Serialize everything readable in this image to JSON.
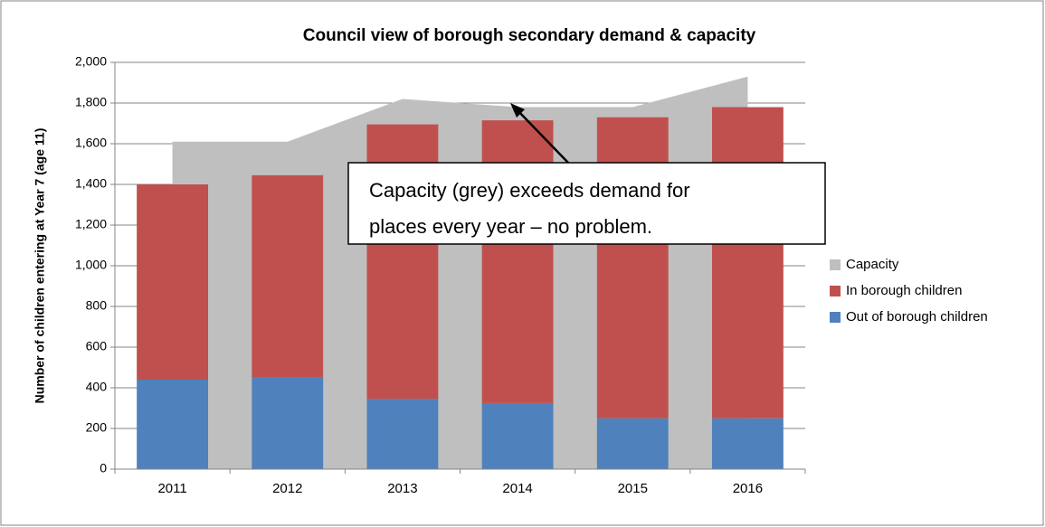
{
  "chart_data": {
    "type": "bar",
    "title": "Council view of borough secondary demand & capacity",
    "y_label": "Number of children entering at Year 7 (age 11)",
    "categories": [
      "2011",
      "2012",
      "2013",
      "2014",
      "2015",
      "2016"
    ],
    "series": [
      {
        "name": "Capacity",
        "type": "area",
        "color": "#bfbfbf",
        "values": [
          1610,
          1610,
          1820,
          1780,
          1780,
          1930
        ]
      },
      {
        "name": "In borough children",
        "type": "bar",
        "color": "#c0504d",
        "values": [
          960,
          995,
          1350,
          1390,
          1480,
          1530
        ]
      },
      {
        "name": "Out of borough children",
        "type": "bar",
        "color": "#4f81bd",
        "values": [
          440,
          450,
          345,
          325,
          250,
          250
        ]
      }
    ],
    "ylim": [
      0,
      2000
    ],
    "yticks": [
      0,
      200,
      400,
      600,
      800,
      {
        "value": 1000,
        "label": "1,000"
      },
      {
        "value": 1200,
        "label": "1,200"
      },
      {
        "value": 1400,
        "label": "1,400"
      },
      {
        "value": 1600,
        "label": "1,600"
      },
      {
        "value": 1800,
        "label": "1,800"
      },
      {
        "value": 2000,
        "label": "2,000"
      }
    ],
    "grid": true,
    "legend": "right",
    "annotation": [
      "Capacity (grey) exceeds demand for",
      "places every year – no problem."
    ]
  }
}
